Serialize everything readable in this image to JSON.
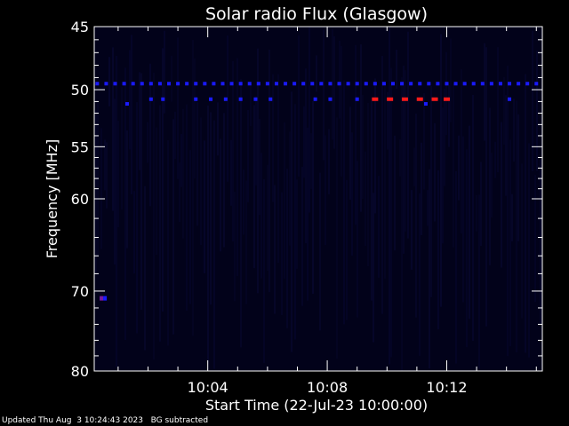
{
  "chart_data": {
    "type": "heatmap",
    "title": "Solar radio Flux (Glasgow)",
    "xlabel": "Start Time (22-Jul-23 10:00:00)",
    "ylabel": "Frequency [MHz]",
    "x_ticks": [
      "10:04",
      "10:08",
      "10:12"
    ],
    "x_tick_minutes": [
      4,
      8,
      12
    ],
    "xlim_minutes": [
      0.2,
      15.2
    ],
    "y_ticks": [
      45,
      50,
      55,
      60,
      70,
      80
    ],
    "ylim": [
      45,
      80
    ],
    "y_scale": "log",
    "grid": false,
    "background_color": "#000000",
    "plot_fill_color": "#02021a",
    "low_color": "#1a1aff",
    "high_color": "#ff1a1a",
    "bands": [
      {
        "freq_mhz": 49.5,
        "level": "low",
        "dots_minutes": [
          0.3,
          0.6,
          0.9,
          1.2,
          1.5,
          1.8,
          2.1,
          2.4,
          2.7,
          3.0,
          3.3,
          3.6,
          3.9,
          4.2,
          4.5,
          4.8,
          5.1,
          5.4,
          5.7,
          6.0,
          6.3,
          6.6,
          6.9,
          7.2,
          7.5,
          7.8,
          8.1,
          8.4,
          8.7,
          9.0,
          9.3,
          9.6,
          9.9,
          10.2,
          10.5,
          10.8,
          11.1,
          11.4,
          11.7,
          12.0,
          12.3,
          12.6,
          12.9,
          13.2,
          13.5,
          13.8,
          14.1,
          14.4,
          14.7,
          15.0
        ]
      },
      {
        "freq_mhz": 50.8,
        "level": "low",
        "dots_minutes": [
          2.1,
          2.5,
          3.6,
          4.1,
          4.6,
          5.1,
          5.6,
          6.1,
          7.6,
          8.1,
          9.0,
          14.1
        ]
      },
      {
        "freq_mhz": 51.2,
        "level": "low",
        "dots_minutes": [
          1.3,
          11.3
        ]
      },
      {
        "freq_mhz": 50.8,
        "level": "high",
        "dots_minutes": [
          9.6,
          10.1,
          10.6,
          11.1,
          11.6,
          12.0
        ]
      },
      {
        "freq_mhz": 70.8,
        "level": "mixed",
        "dots_minutes": [
          0.5
        ]
      }
    ]
  },
  "footer": {
    "updated": "Updated Thu Aug  3 10:24:43 2023",
    "note": "BG subtracted"
  }
}
